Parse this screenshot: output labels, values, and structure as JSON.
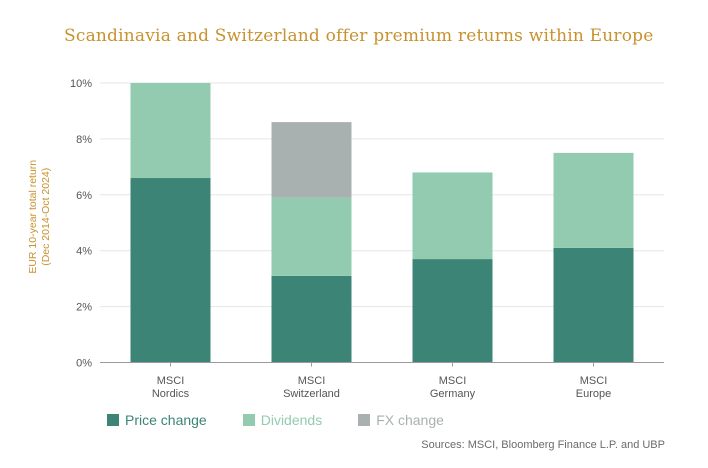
{
  "title": "Scandinavia and Switzerland offer premium returns within Europe",
  "source": "Sources: MSCI, Bloomberg Finance L.P. and UBP",
  "colors": {
    "title": "#c8922e",
    "price": "#3b8476",
    "dividends": "#93cbb1",
    "fx": "#a8b1b0",
    "axis_text": "#555555",
    "grid": "#e6e6e6"
  },
  "chart_data": {
    "type": "bar",
    "stacked": true,
    "ylabel": [
      "EUR 10-year total return",
      "(Dec 2014-Oct 2024)"
    ],
    "xlabel": "",
    "ylim": [
      0,
      10
    ],
    "yticks": [
      0,
      2,
      4,
      6,
      8,
      10
    ],
    "ytick_labels": [
      "0%",
      "2%",
      "4%",
      "6%",
      "8%",
      "10%"
    ],
    "grid": true,
    "legend_position": "bottom-left",
    "categories": [
      [
        "MSCI",
        "Nordics"
      ],
      [
        "MSCI",
        "Switzerland"
      ],
      [
        "MSCI",
        "Germany"
      ],
      [
        "MSCI",
        "Europe"
      ]
    ],
    "series": [
      {
        "name": "Price change",
        "color": "#3b8476",
        "values": [
          6.6,
          3.1,
          3.7,
          4.1
        ]
      },
      {
        "name": "Dividends",
        "color": "#93cbb1",
        "values": [
          3.4,
          2.8,
          3.1,
          3.4
        ]
      },
      {
        "name": "FX change",
        "color": "#a8b1b0",
        "values": [
          0,
          2.7,
          0,
          0
        ]
      }
    ]
  }
}
